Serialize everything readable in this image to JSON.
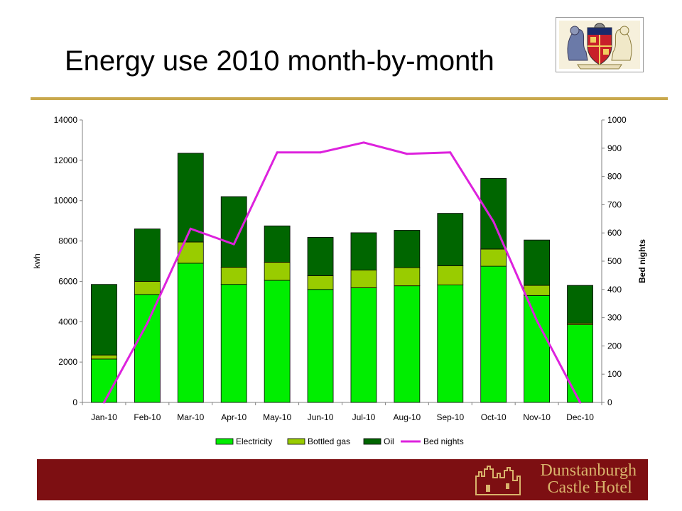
{
  "slide": {
    "title": "Energy use 2010 month-by-month"
  },
  "footer": {
    "hotel_line1": "Dunstanburgh",
    "hotel_line2": "Castle Hotel"
  },
  "colors": {
    "electricity": "#00ee00",
    "bottled_gas": "#99cc00",
    "oil": "#006600",
    "bed_nights": "#dd22dd",
    "footer_band": "#7d0f12",
    "rule": "#c9a84c"
  },
  "chart_data": {
    "type": "bar",
    "stacked": true,
    "categories": [
      "Jan-10",
      "Feb-10",
      "Mar-10",
      "Apr-10",
      "May-10",
      "Jun-10",
      "Jul-10",
      "Aug-10",
      "Sep-10",
      "Oct-10",
      "Nov-10",
      "Dec-10"
    ],
    "series": [
      {
        "name": "Electricity",
        "axis": "left",
        "kind": "bar",
        "values": [
          2150,
          5350,
          6900,
          5850,
          6050,
          5600,
          5680,
          5780,
          5820,
          6750,
          5300,
          3850
        ]
      },
      {
        "name": "Bottled gas",
        "axis": "left",
        "kind": "bar",
        "values": [
          200,
          650,
          1050,
          850,
          900,
          680,
          880,
          900,
          950,
          850,
          500,
          80
        ]
      },
      {
        "name": "Oil",
        "axis": "left",
        "kind": "bar",
        "values": [
          3500,
          2600,
          4400,
          3500,
          1800,
          1900,
          1850,
          1850,
          2600,
          3500,
          2250,
          1870
        ]
      },
      {
        "name": "Bed nights",
        "axis": "right",
        "kind": "line",
        "values": [
          0,
          280,
          615,
          560,
          885,
          885,
          920,
          880,
          885,
          640,
          290,
          0
        ]
      }
    ],
    "ylabel": "kwh",
    "y2label": "Bed nights",
    "ylim": [
      0,
      14000
    ],
    "y2lim": [
      0,
      1000
    ],
    "yticks": [
      "0",
      "2000",
      "4000",
      "6000",
      "8000",
      "10000",
      "12000",
      "14000"
    ],
    "y2ticks": [
      "0",
      "100",
      "200",
      "300",
      "400",
      "500",
      "600",
      "700",
      "800",
      "900",
      "1000"
    ],
    "legend_position": "bottom",
    "grid": false
  }
}
